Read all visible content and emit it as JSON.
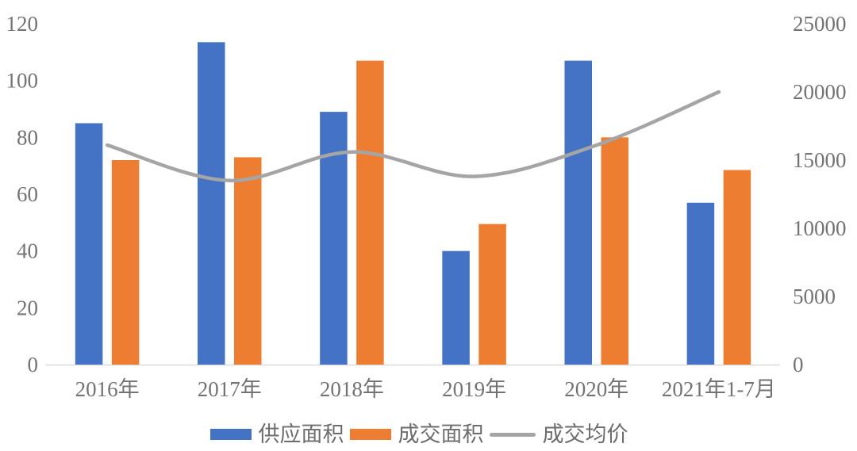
{
  "chart_data": {
    "type": "combo",
    "title": "",
    "categories": [
      "2016年",
      "2017年",
      "2018年",
      "2019年",
      "2020年",
      "2021年1-7月"
    ],
    "series": [
      {
        "name": "供应面积",
        "type": "bar",
        "axis": "left",
        "color": "#4472C4",
        "values": [
          85,
          113.5,
          89,
          40,
          107,
          57
        ]
      },
      {
        "name": "成交面积",
        "type": "bar",
        "axis": "left",
        "color": "#ED7D31",
        "values": [
          72,
          73,
          107,
          49.5,
          80,
          68.5
        ]
      },
      {
        "name": "成交均价",
        "type": "line",
        "axis": "right",
        "color": "#A5A5A5",
        "smooth": true,
        "values": [
          16100,
          13500,
          15600,
          13800,
          16100,
          20000
        ]
      }
    ],
    "left_axis": {
      "min": 0,
      "max": 120,
      "step": 20,
      "ticks": [
        "0",
        "20",
        "40",
        "60",
        "80",
        "100",
        "120"
      ]
    },
    "right_axis": {
      "min": 0,
      "max": 25000,
      "step": 5000,
      "ticks": [
        "0",
        "5000",
        "10000",
        "15000",
        "20000",
        "25000"
      ]
    },
    "grid": false,
    "legend_position": "bottom",
    "colors": {
      "axis_line": "#D9D9D9",
      "tick_text": "#737373",
      "legend_text": "#6d6d6d"
    }
  }
}
